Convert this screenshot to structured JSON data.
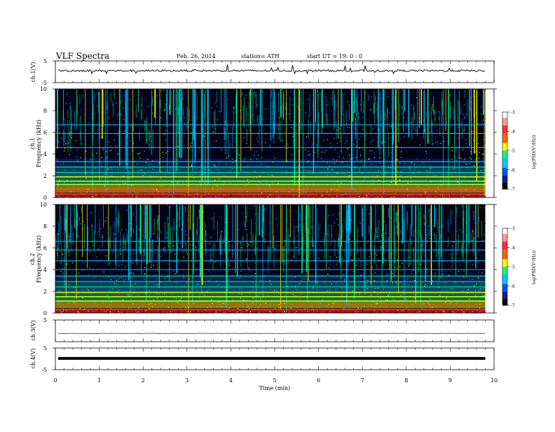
{
  "header": {
    "title": "VLF Spectra",
    "date": "Feb. 26, 2014",
    "station": "station= ATH",
    "start": "start  UT =   19: 0  : 0"
  },
  "colorbar_label": "log(PSD(V²/Hz))",
  "colors": {
    "spectro_bg": "#030318",
    "colormap": [
      "#000000",
      "#1a1a8c",
      "#0055ff",
      "#00c8ff",
      "#00ff88",
      "#ffff00",
      "#ff6600",
      "#ff3030",
      "#ff9999",
      "#ffffff"
    ]
  },
  "chart_data": [
    {
      "type": "line",
      "ylabel": "ch.1(V)",
      "ylim": [
        -5,
        5
      ],
      "yticks": [
        "5",
        "-5"
      ],
      "description_of_series": "noisy trace around +0.5 V with frequent spikes",
      "level": 0.5
    },
    {
      "type": "heatmap",
      "panel": "ch.1",
      "ylabel": "Frequency (kHz)",
      "ylim": [
        0,
        10
      ],
      "yticks": [
        "0",
        "2",
        "4",
        "6",
        "8",
        "10"
      ],
      "xlim": [
        0,
        10
      ],
      "colorbar": {
        "range": [
          -7,
          -3
        ],
        "ticks": [
          "-3",
          "-4",
          "-5",
          "-6",
          "-7"
        ]
      },
      "emission_bands_khz": [
        0.3,
        0.6,
        0.9,
        1.2,
        1.5,
        1.9,
        2.3,
        2.8,
        3.3,
        4.6,
        5.9,
        6.7
      ],
      "data_end_min": 9.8
    },
    {
      "type": "heatmap",
      "panel": "ch.2",
      "ylabel": "Frequency (kHz)",
      "ylim": [
        0,
        10
      ],
      "yticks": [
        "0",
        "2",
        "4",
        "6",
        "8",
        "10"
      ],
      "xlim": [
        0,
        10
      ],
      "colorbar": {
        "range": [
          -7,
          -3
        ],
        "ticks": [
          "-3",
          "-4",
          "-5",
          "-6",
          "-7"
        ]
      },
      "emission_bands_khz": [
        0.3,
        0.7,
        1.1,
        1.5,
        1.9,
        2.4,
        2.9,
        3.4,
        4.0,
        4.8,
        5.8,
        6.6
      ],
      "data_end_min": 9.8
    },
    {
      "type": "line",
      "ylabel": "ch.3(V)",
      "ylim": [
        -5,
        5
      ],
      "yticks": [
        "5"
      ],
      "level": -1.2
    },
    {
      "type": "line",
      "ylabel": "ch.4(V)",
      "ylim": [
        -5,
        5
      ],
      "yticks": [
        "5",
        "-5"
      ],
      "level": 0.2
    }
  ],
  "x_axis": {
    "label": "Time (min)",
    "ticks": [
      "0",
      "1",
      "2",
      "3",
      "4",
      "5",
      "6",
      "7",
      "8",
      "9",
      "10"
    ],
    "range": [
      0,
      10
    ]
  }
}
